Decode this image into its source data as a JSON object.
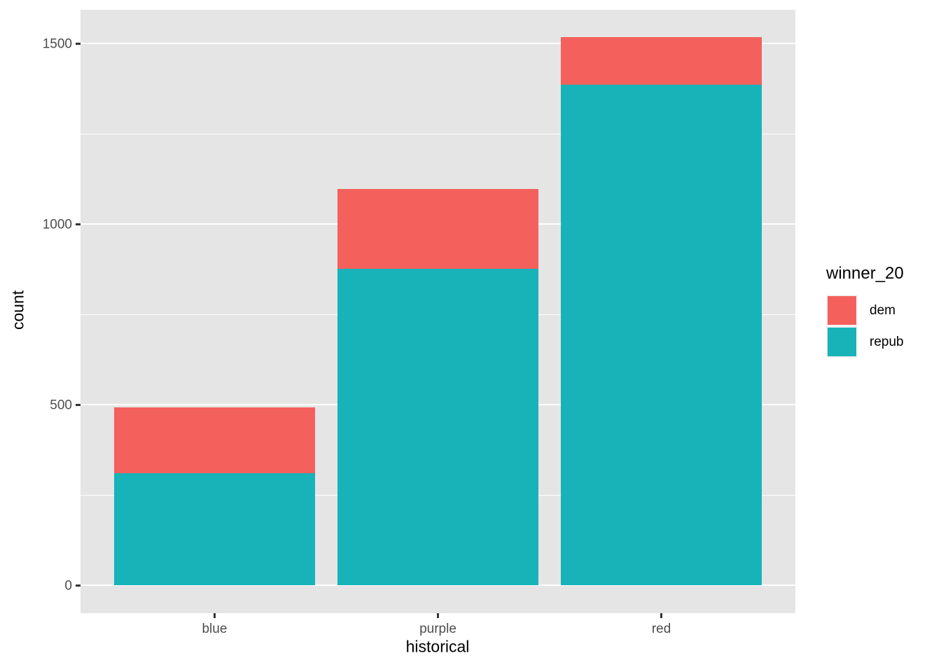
{
  "chart_data": {
    "type": "bar",
    "stacked": true,
    "title": "",
    "xlabel": "historical",
    "ylabel": "count",
    "categories": [
      "blue",
      "purple",
      "red"
    ],
    "series": [
      {
        "name": "dem",
        "color": "#F4605C",
        "values": [
          182,
          221,
          131
        ]
      },
      {
        "name": "repub",
        "color": "#17B3B8",
        "values": [
          310,
          876,
          1386
        ]
      }
    ],
    "stack_order_bottom_to_top": [
      "repub",
      "dem"
    ],
    "totals": [
      492,
      1097,
      1517
    ],
    "ylim": [
      0,
      1500
    ],
    "yticks": [
      0,
      500,
      1000,
      1500
    ],
    "minor_gridlines": [
      250,
      750,
      1250
    ],
    "grid": "on",
    "panel_background": "#E5E5E5",
    "gridline_color": "#FFFFFF",
    "tick_label_color": "#4D4D4D",
    "legend": {
      "title": "winner_20",
      "position": "right",
      "entries": [
        {
          "label": "dem",
          "color": "#F4605C"
        },
        {
          "label": "repub",
          "color": "#17B3B8"
        }
      ]
    }
  }
}
